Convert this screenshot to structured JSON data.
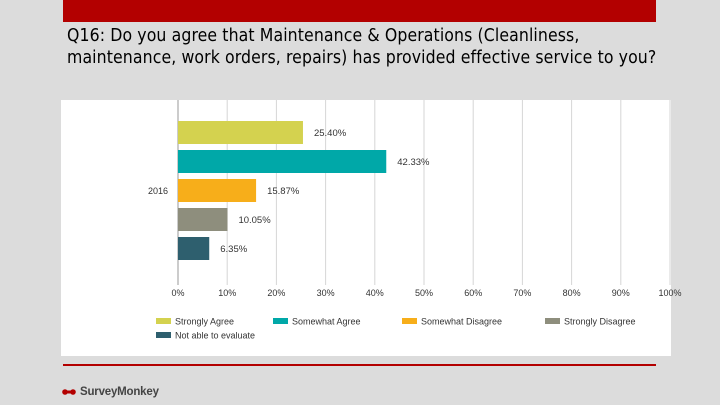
{
  "slide": {
    "title": "Q16: Do you agree that Maintenance & Operations (Cleanliness, maintenance, work orders, repairs) has provided effective service to you?",
    "logo_text": "SurveyMonkey",
    "accent_color": "#b30000"
  },
  "chart_data": {
    "type": "bar",
    "orientation": "horizontal",
    "categories": [
      "2016"
    ],
    "series": [
      {
        "name": "Strongly Agree",
        "values": [
          25.4
        ],
        "label": "25.40%",
        "color": "#d4d24f"
      },
      {
        "name": "Somewhat Agree",
        "values": [
          42.33
        ],
        "label": "42.33%",
        "color": "#00a8a8"
      },
      {
        "name": "Somewhat Disagree",
        "values": [
          15.87
        ],
        "label": "15.87%",
        "color": "#f7ae1a"
      },
      {
        "name": "Strongly Disagree",
        "values": [
          10.05
        ],
        "label": "10.05%",
        "color": "#8e8e7d"
      },
      {
        "name": "Not able to evaluate",
        "values": [
          6.35
        ],
        "label": "6.35%",
        "color": "#2e5f6e"
      }
    ],
    "x_ticks": [
      "0%",
      "10%",
      "20%",
      "30%",
      "40%",
      "50%",
      "60%",
      "70%",
      "80%",
      "90%",
      "100%"
    ],
    "xlim": [
      0,
      100
    ],
    "grid": true,
    "legend_position": "bottom"
  }
}
